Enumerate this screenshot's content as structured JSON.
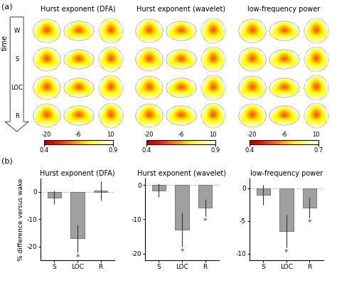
{
  "panel_labels": [
    "(a)",
    "(b)"
  ],
  "brain_maps": {
    "axis_label": "time",
    "rows": [
      "W",
      "S",
      "LOC",
      "R"
    ],
    "slice_labels": [
      -20,
      -6,
      10
    ],
    "columns": [
      {
        "title": "Hurst exponent (DFA)",
        "colorbar": {
          "range": [
            0.4,
            0.9
          ],
          "ticks": [
            0.4,
            0.9
          ]
        }
      },
      {
        "title": "Hurst exponent (wavelet)",
        "colorbar": {
          "range": [
            0.4,
            0.9
          ],
          "ticks": [
            0.4,
            0.9
          ]
        }
      },
      {
        "title": "low-frequency power",
        "colorbar": {
          "range": [
            0.4,
            0.7
          ],
          "ticks": [
            0.4,
            0.7
          ]
        }
      }
    ]
  },
  "chart_data": [
    {
      "type": "bar",
      "title": "Hurst exponent (DFA)",
      "y_label": "% difference versus wake",
      "categories": [
        "S",
        "LOC",
        "R"
      ],
      "values": [
        -2,
        -17,
        0.5
      ],
      "errors": [
        2.5,
        5,
        3.5
      ],
      "color": "#a0a0a0",
      "ylim": [
        -25,
        5
      ],
      "yticks": [
        -20,
        -10,
        0
      ],
      "annotations": [
        {
          "category": "LOC",
          "text": "*"
        }
      ]
    },
    {
      "type": "bar",
      "title": "Hurst exponent (wavelet)",
      "categories": [
        "S",
        "LOC",
        "R"
      ],
      "values": [
        -1.5,
        -13,
        -6.5
      ],
      "errors": [
        2,
        5,
        2.5
      ],
      "color": "#a0a0a0",
      "ylim": [
        -22,
        2
      ],
      "yticks": [
        -20,
        -10,
        0
      ],
      "annotations": [
        {
          "category": "LOC",
          "text": "*"
        },
        {
          "category": "R",
          "text": "*"
        }
      ]
    },
    {
      "type": "bar",
      "title": "low-frequency power",
      "categories": [
        "S",
        "LOC",
        "R"
      ],
      "values": [
        -1,
        -6.5,
        -3
      ],
      "errors": [
        1.5,
        2.5,
        1.5
      ],
      "color": "#a0a0a0",
      "ylim": [
        -11,
        1.5
      ],
      "yticks": [
        -10,
        -5,
        0
      ],
      "annotations": [
        {
          "category": "LOC",
          "text": "*"
        },
        {
          "category": "R",
          "text": "*"
        }
      ]
    }
  ]
}
